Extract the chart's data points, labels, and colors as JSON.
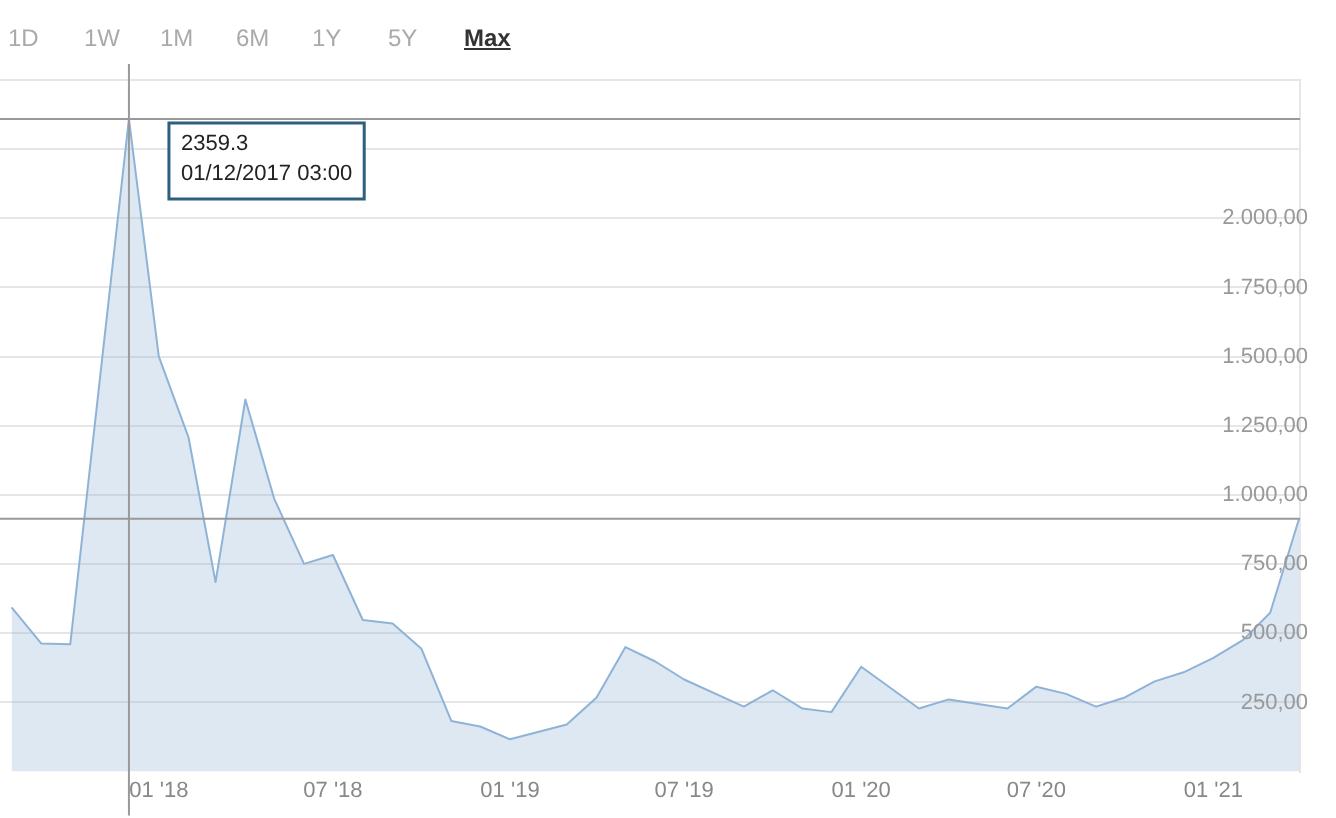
{
  "chart_data": {
    "type": "area",
    "x": [
      "2017-08",
      "2017-09",
      "2017-10",
      "2017-12-01",
      "2018-01",
      "2018-02",
      "2018-03",
      "2018-04",
      "2018-05",
      "2018-06",
      "2018-07",
      "2018-08",
      "2018-09",
      "2018-10",
      "2018-11",
      "2018-12",
      "2019-01",
      "2019-03",
      "2019-04",
      "2019-05",
      "2019-06",
      "2019-07",
      "2019-09",
      "2019-10",
      "2019-11",
      "2019-12",
      "2020-01",
      "2020-03",
      "2020-04",
      "2020-06",
      "2020-07",
      "2020-08",
      "2020-09",
      "2020-10",
      "2020-11",
      "2020-12",
      "2021-01",
      "2021-02",
      "2021-03",
      "2021-03-31"
    ],
    "series": [
      {
        "color": "#8fb3d6",
        "values": [
          594,
          463,
          460,
          2359.3,
          1501,
          1207,
          685,
          1345,
          986,
          751,
          783,
          548,
          535,
          444,
          183,
          163,
          117,
          170,
          268,
          450,
          398,
          333,
          235,
          294,
          228,
          215,
          379,
          228,
          261,
          228,
          307,
          281,
          235,
          268,
          326,
          359,
          411,
          476,
          574,
          914
        ]
      }
    ],
    "xlim": [
      "2017-07-20",
      "2021-04-01"
    ],
    "xticks": [
      {
        "value": "2018-01",
        "label": "01 '18"
      },
      {
        "value": "2018-07",
        "label": "07 '18"
      },
      {
        "value": "2019-01",
        "label": "01 '19"
      },
      {
        "value": "2019-07",
        "label": "07 '19"
      },
      {
        "value": "2020-01",
        "label": "01 '20"
      },
      {
        "value": "2020-07",
        "label": "07 '20"
      },
      {
        "value": "2021-01",
        "label": "01 '21"
      }
    ],
    "ylim": [
      0,
      2500
    ],
    "yticks": [
      {
        "value": 250,
        "label": "250,00"
      },
      {
        "value": 500,
        "label": "500,00"
      },
      {
        "value": 750,
        "label": "750,00"
      },
      {
        "value": 1000,
        "label": "1.000,00"
      },
      {
        "value": 1250,
        "label": "1.250,00"
      },
      {
        "value": 1500,
        "label": "1.500,00"
      },
      {
        "value": 1750,
        "label": "1.750,00"
      },
      {
        "value": 2000,
        "label": "2.000,00"
      },
      {
        "value": 2250,
        "label": null
      },
      {
        "value": 2500,
        "label": null
      }
    ],
    "grid": "y",
    "legend": false,
    "ref_lines": [
      {
        "axis": "x",
        "value": "2017-12-01",
        "color": "#999999"
      },
      {
        "axis": "y",
        "value": 2359.3,
        "color": "#999999"
      },
      {
        "axis": "y",
        "value": 914,
        "color": "#999999"
      }
    ],
    "annotations": [
      "1D",
      "1W",
      "1M",
      "6M",
      "1Y",
      "5Y",
      "Max",
      {
        "text": "2359.3\n01/12/2017 03:00",
        "x": "2017-12-01",
        "y": 2359.3
      }
    ]
  }
}
